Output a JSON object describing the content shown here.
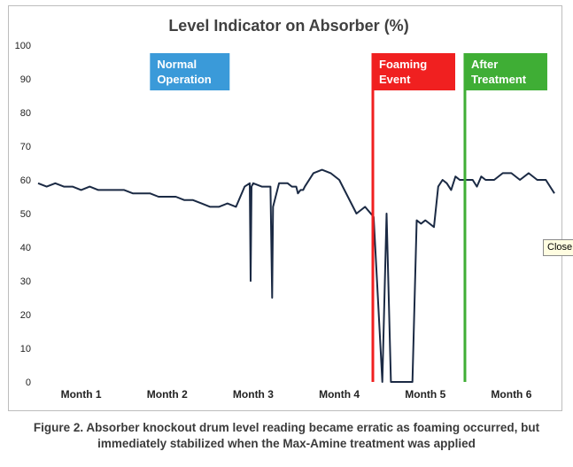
{
  "chart_data": {
    "type": "line",
    "title": "Level Indicator on Absorber (%)",
    "xlabel": "",
    "ylabel": "",
    "ylim": [
      0,
      100
    ],
    "yticks": [
      0,
      10,
      20,
      30,
      40,
      50,
      60,
      70,
      80,
      90,
      100
    ],
    "xlim": [
      0,
      6
    ],
    "month_labels": [
      "Month 1",
      "Month 2",
      "Month 3",
      "Month 4",
      "Month 5",
      "Month 6"
    ],
    "grid": false,
    "series_color": "#1b2a44",
    "series": [
      {
        "name": "",
        "x": [
          0.0,
          0.1,
          0.2,
          0.3,
          0.4,
          0.5,
          0.6,
          0.7,
          0.8,
          0.9,
          1.0,
          1.1,
          1.2,
          1.3,
          1.4,
          1.5,
          1.6,
          1.7,
          1.8,
          1.9,
          2.0,
          2.1,
          2.2,
          2.3,
          2.4,
          2.46,
          2.47,
          2.48,
          2.5,
          2.6,
          2.7,
          2.72,
          2.73,
          2.8,
          2.9,
          2.95,
          3.0,
          3.02,
          3.05,
          3.08,
          3.1,
          3.2,
          3.3,
          3.4,
          3.5,
          3.6,
          3.7,
          3.8,
          3.9,
          4.0,
          4.05,
          4.1,
          4.15,
          4.2,
          4.25,
          4.3,
          4.35,
          4.4,
          4.45,
          4.5,
          4.55,
          4.6,
          4.65,
          4.7,
          4.75,
          4.8,
          4.85,
          4.9,
          4.95,
          5.0,
          5.05,
          5.1,
          5.15,
          5.2,
          5.3,
          5.4,
          5.5,
          5.6,
          5.7,
          5.8,
          5.9,
          6.0
        ],
        "values": [
          59,
          58,
          59,
          58,
          58,
          57,
          58,
          57,
          57,
          57,
          57,
          56,
          56,
          56,
          55,
          55,
          55,
          54,
          54,
          53,
          52,
          52,
          53,
          52,
          58,
          59,
          30,
          58,
          59,
          58,
          58,
          25,
          52,
          59,
          59,
          58,
          58,
          56,
          57,
          57,
          58,
          62,
          63,
          62,
          60,
          55,
          50,
          52,
          49,
          0,
          50,
          0,
          0,
          0,
          0,
          0,
          0,
          48,
          47,
          48,
          47,
          46,
          58,
          60,
          59,
          57,
          61,
          60,
          60,
          60,
          60,
          58,
          61,
          60,
          60,
          62,
          62,
          60,
          62,
          60,
          60,
          56
        ]
      }
    ],
    "annotations": [
      {
        "label_line1": "Normal",
        "label_line2": "Operation",
        "color": "#3a9ad9",
        "x": 1.3,
        "has_line": false
      },
      {
        "label_line1": "Foaming",
        "label_line2": "Event",
        "color": "#f02020",
        "x": 3.88,
        "has_line": true
      },
      {
        "label_line1": "After",
        "label_line2": "Treatment",
        "color": "#3fae35",
        "x": 4.95,
        "has_line": true
      }
    ],
    "legend": "none"
  },
  "caption": {
    "line1": "Figure 2. Absorber knockout drum level reading became erratic as foaming occurred, but",
    "line2": "immediately stabilized when the Max-Amine treatment was applied"
  },
  "tooltip": {
    "text": "Close"
  }
}
